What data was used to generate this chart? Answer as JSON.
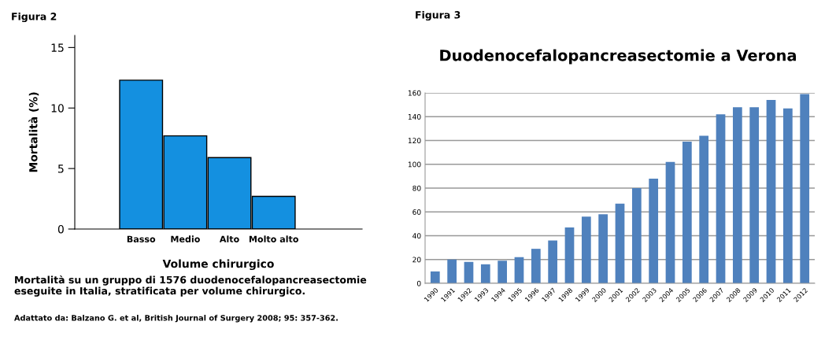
{
  "chart_data": [
    {
      "type": "bar",
      "title": "Figura 2",
      "xlabel": "Volume chirurgico",
      "ylabel": "Mortalità (%)",
      "categories": [
        "Basso",
        "Medio",
        "Alto",
        "Molto alto"
      ],
      "values": [
        12.3,
        7.7,
        5.9,
        2.7
      ],
      "color": "#1490e0",
      "ylim": [
        0,
        16
      ],
      "yticks": [
        0,
        5,
        10,
        15
      ],
      "grid": false,
      "annotations": [
        "Mortalità su un gruppo di 1576 duodenocefalopancreasectomie eseguite in Italia, stratificata per volume chirurgico.",
        "Adattato da: Balzano G. et al, British Journal of Surgery 2008; 95: 357-362."
      ]
    },
    {
      "type": "bar",
      "title": "Figura 3",
      "subtitle": "Duodenocefalopancreasectomie a Verona",
      "categories": [
        "1990",
        "1991",
        "1992",
        "1993",
        "1994",
        "1995",
        "1996",
        "1997",
        "1998",
        "1999",
        "2000",
        "2001",
        "2002",
        "2003",
        "2004",
        "2005",
        "2006",
        "2007",
        "2008",
        "2009",
        "2010",
        "2011",
        "2012"
      ],
      "values": [
        10,
        20,
        18,
        16,
        19,
        22,
        29,
        36,
        47,
        56,
        58,
        67,
        80,
        88,
        102,
        119,
        124,
        142,
        148,
        148,
        154,
        147,
        159
      ],
      "color": "#4f81bd",
      "ylim": [
        0,
        160
      ],
      "yticks": [
        0,
        20,
        40,
        60,
        80,
        100,
        120,
        140,
        160
      ],
      "grid": "y"
    }
  ]
}
